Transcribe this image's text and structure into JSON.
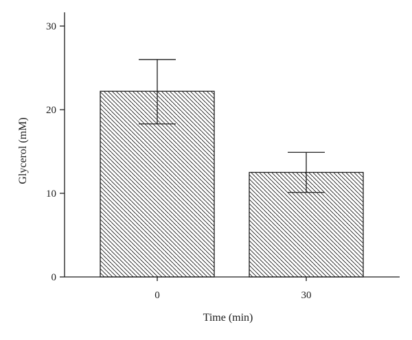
{
  "chart_data": {
    "type": "bar",
    "categories": [
      "0",
      "30"
    ],
    "values": [
      22.2,
      12.5
    ],
    "error_upper": [
      26.0,
      14.9
    ],
    "error_lower": [
      18.3,
      10.1
    ],
    "xlabel": "Time (min)",
    "ylabel": "Glycerol (mM)",
    "ylim": [
      0,
      30
    ],
    "yticks": [
      0,
      10,
      20,
      30
    ],
    "grid": false,
    "legend": "none",
    "bar_fill": "diagonal-hatch",
    "colors": {
      "bar_edge": "#1a1a1a",
      "hatch": "#1a1a1a",
      "axis": "#1a1a1a",
      "background": "#ffffff"
    }
  }
}
